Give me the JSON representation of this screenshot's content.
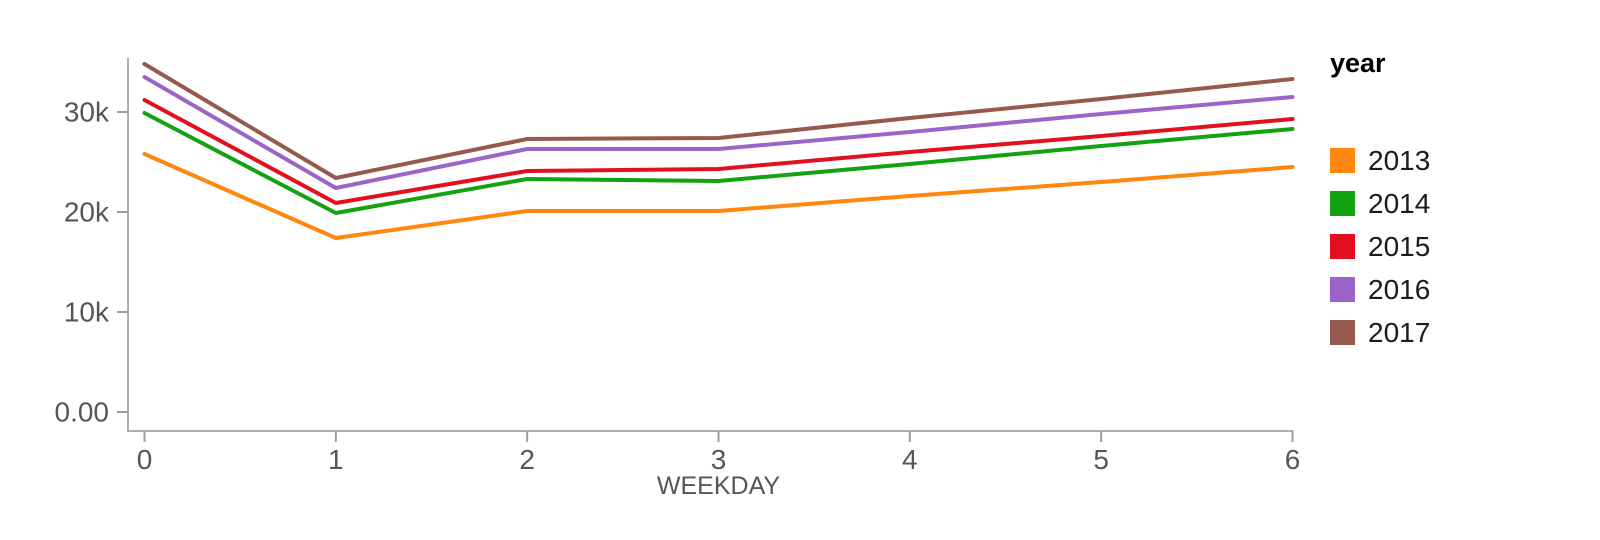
{
  "chart_data": {
    "type": "line",
    "title": "",
    "xlabel": "WEEKDAY",
    "ylabel": "",
    "xlim": [
      0,
      6
    ],
    "ylim": [
      0,
      35400
    ],
    "grid": false,
    "x": [
      0,
      1,
      2,
      3,
      4,
      5,
      6
    ],
    "x_tick_labels": [
      "0",
      "1",
      "2",
      "3",
      "4",
      "5",
      "6"
    ],
    "y_ticks": [
      0,
      10000,
      20000,
      30000
    ],
    "y_tick_labels": [
      "0.00",
      "10k",
      "20k",
      "30k"
    ],
    "legend_title": "year",
    "legend_position": "right",
    "series": [
      {
        "name": "2013",
        "color": "#FF870D",
        "values": [
          25800,
          17400,
          20100,
          20100,
          21600,
          23000,
          24500
        ]
      },
      {
        "name": "2014",
        "color": "#12A212",
        "values": [
          29900,
          19900,
          23300,
          23100,
          24800,
          26600,
          28300
        ]
      },
      {
        "name": "2015",
        "color": "#E2101E",
        "values": [
          31200,
          20900,
          24100,
          24300,
          26000,
          27600,
          29300
        ]
      },
      {
        "name": "2016",
        "color": "#9A64C8",
        "values": [
          33500,
          22400,
          26300,
          26300,
          28000,
          29800,
          31500
        ]
      },
      {
        "name": "2017",
        "color": "#96594E",
        "values": [
          34800,
          23400,
          27300,
          27400,
          29400,
          31300,
          33300
        ]
      }
    ],
    "axis_colors": {
      "domain_line": "#AFAFAF",
      "tick_mark": "#9E9E9E",
      "tick_label": "#565656",
      "axis_title": "#565656"
    }
  }
}
